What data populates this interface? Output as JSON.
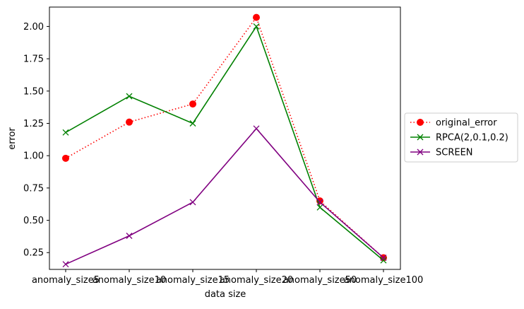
{
  "chart_data": {
    "type": "line",
    "title": "",
    "xlabel": "data size",
    "ylabel": "error",
    "categories": [
      "anomaly_size5",
      "anomaly_size10",
      "anomaly_size15",
      "anomaly_size20",
      "anomaly_size50",
      "anomaly_size100"
    ],
    "ylim": [
      0.12,
      2.15
    ],
    "yticks": [
      "0.25",
      "0.50",
      "0.75",
      "1.00",
      "1.25",
      "1.50",
      "1.75",
      "2.00"
    ],
    "grid": false,
    "legend_position": "center-right-outside",
    "series": [
      {
        "name": "original_error",
        "color": "#ff0000",
        "line_style": "dotted",
        "marker": "circle",
        "values": [
          0.98,
          1.26,
          1.4,
          2.07,
          0.65,
          0.21
        ]
      },
      {
        "name": "RPCA(2,0.1,0.2)",
        "color": "#008000",
        "line_style": "solid",
        "marker": "x",
        "values": [
          1.18,
          1.46,
          1.25,
          2.0,
          0.6,
          0.19
        ]
      },
      {
        "name": "SCREEN",
        "color": "#800080",
        "line_style": "solid",
        "marker": "x",
        "values": [
          0.16,
          0.38,
          0.64,
          1.21,
          0.64,
          0.21
        ]
      }
    ]
  }
}
